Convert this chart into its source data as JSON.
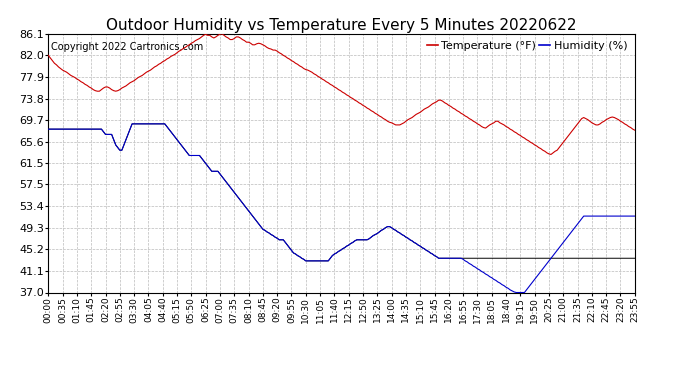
{
  "title": "Outdoor Humidity vs Temperature Every 5 Minutes 20220622",
  "copyright": "Copyright 2022 Cartronics.com",
  "legend_temp": "Temperature (°F)",
  "legend_hum": "Humidity (%)",
  "bg_color": "#ffffff",
  "grid_color": "#bbbbbb",
  "temp_color": "#cc0000",
  "hum_color": "#0000cc",
  "black_color": "#000000",
  "title_fontsize": 11,
  "copyright_fontsize": 7,
  "legend_fontsize": 8,
  "tick_fontsize": 6.5,
  "ytick_fontsize": 8,
  "ylabel_values": [
    37.0,
    41.1,
    45.2,
    49.3,
    53.4,
    57.5,
    61.5,
    65.6,
    69.7,
    73.8,
    77.9,
    82.0,
    86.1
  ],
  "temp_line": [
    82.0,
    81.5,
    81.0,
    80.5,
    80.2,
    79.8,
    79.5,
    79.2,
    79.0,
    78.8,
    78.5,
    78.2,
    78.0,
    77.8,
    77.5,
    77.3,
    77.0,
    76.8,
    76.5,
    76.3,
    76.0,
    75.8,
    75.5,
    75.3,
    75.2,
    75.2,
    75.5,
    75.8,
    76.0,
    76.0,
    75.8,
    75.5,
    75.3,
    75.2,
    75.3,
    75.5,
    75.8,
    76.0,
    76.2,
    76.5,
    76.8,
    77.0,
    77.2,
    77.5,
    77.8,
    78.0,
    78.2,
    78.5,
    78.8,
    79.0,
    79.2,
    79.5,
    79.8,
    80.0,
    80.3,
    80.5,
    80.8,
    81.0,
    81.3,
    81.5,
    81.8,
    82.0,
    82.2,
    82.5,
    82.8,
    83.0,
    83.3,
    83.5,
    83.8,
    84.0,
    84.3,
    84.5,
    84.8,
    85.0,
    85.2,
    85.5,
    85.8,
    86.0,
    85.8,
    85.8,
    85.5,
    85.3,
    85.5,
    85.8,
    86.0,
    86.1,
    85.8,
    85.5,
    85.3,
    85.0,
    85.0,
    85.2,
    85.5,
    85.5,
    85.3,
    85.0,
    84.8,
    84.5,
    84.5,
    84.3,
    84.0,
    84.0,
    84.2,
    84.3,
    84.2,
    84.0,
    83.8,
    83.5,
    83.3,
    83.2,
    83.0,
    83.0,
    82.8,
    82.5,
    82.3,
    82.0,
    81.8,
    81.5,
    81.3,
    81.0,
    80.8,
    80.5,
    80.3,
    80.0,
    79.8,
    79.5,
    79.3,
    79.2,
    79.0,
    78.8,
    78.5,
    78.3,
    78.0,
    77.8,
    77.5,
    77.3,
    77.0,
    76.8,
    76.5,
    76.3,
    76.0,
    75.8,
    75.5,
    75.3,
    75.0,
    74.8,
    74.5,
    74.3,
    74.0,
    73.8,
    73.5,
    73.3,
    73.0,
    72.8,
    72.5,
    72.3,
    72.0,
    71.8,
    71.5,
    71.3,
    71.0,
    70.8,
    70.5,
    70.3,
    70.0,
    69.8,
    69.5,
    69.3,
    69.2,
    69.0,
    68.8,
    68.8,
    68.8,
    69.0,
    69.2,
    69.5,
    69.8,
    70.0,
    70.2,
    70.5,
    70.8,
    71.0,
    71.2,
    71.5,
    71.8,
    72.0,
    72.2,
    72.5,
    72.8,
    73.0,
    73.2,
    73.5,
    73.5,
    73.3,
    73.0,
    72.8,
    72.5,
    72.3,
    72.0,
    71.8,
    71.5,
    71.3,
    71.0,
    70.8,
    70.5,
    70.3,
    70.0,
    69.8,
    69.5,
    69.3,
    69.0,
    68.8,
    68.5,
    68.3,
    68.2,
    68.5,
    68.8,
    69.0,
    69.2,
    69.5,
    69.5,
    69.2,
    69.0,
    68.8,
    68.5,
    68.3,
    68.0,
    67.8,
    67.5,
    67.3,
    67.0,
    66.8,
    66.5,
    66.3,
    66.0,
    65.8,
    65.5,
    65.3,
    65.0,
    64.8,
    64.5,
    64.3,
    64.0,
    63.8,
    63.5,
    63.3,
    63.2,
    63.5,
    63.8,
    64.0,
    64.5,
    65.0,
    65.5,
    66.0,
    66.5,
    67.0,
    67.5,
    68.0,
    68.5,
    69.0,
    69.5,
    70.0,
    70.2,
    70.0,
    69.8,
    69.5,
    69.2,
    69.0,
    68.8,
    68.8,
    69.0,
    69.3,
    69.5,
    69.8,
    70.0,
    70.2,
    70.3,
    70.2,
    70.0,
    69.8,
    69.5,
    69.3,
    69.0,
    68.8,
    68.5,
    68.3,
    68.0,
    67.8,
    67.5,
    67.3,
    67.0,
    66.8,
    66.5,
    66.3,
    66.0,
    65.8,
    65.5,
    65.2,
    65.0,
    64.8,
    65.0,
    65.5,
    66.0,
    66.5,
    67.0,
    67.5,
    68.0,
    68.5,
    69.0,
    69.5,
    70.0,
    70.2,
    70.0,
    69.8,
    69.5,
    69.3,
    69.2,
    69.0,
    68.5
  ],
  "hum_line": [
    68.0,
    68.0,
    68.0,
    68.0,
    68.0,
    68.0,
    68.0,
    68.0,
    68.0,
    68.0,
    68.0,
    68.0,
    68.0,
    68.0,
    68.0,
    68.0,
    68.0,
    68.0,
    68.0,
    68.0,
    68.0,
    68.0,
    68.0,
    68.0,
    68.0,
    68.0,
    68.0,
    67.5,
    67.0,
    67.0,
    67.0,
    67.0,
    66.0,
    65.0,
    64.5,
    64.0,
    64.0,
    65.0,
    66.0,
    67.0,
    68.0,
    69.0,
    69.0,
    69.0,
    69.0,
    69.0,
    69.0,
    69.0,
    69.0,
    69.0,
    69.0,
    69.0,
    69.0,
    69.0,
    69.0,
    69.0,
    69.0,
    69.0,
    68.5,
    68.0,
    67.5,
    67.0,
    66.5,
    66.0,
    65.5,
    65.0,
    64.5,
    64.0,
    63.5,
    63.0,
    63.0,
    63.0,
    63.0,
    63.0,
    63.0,
    62.5,
    62.0,
    61.5,
    61.0,
    60.5,
    60.0,
    60.0,
    60.0,
    60.0,
    59.5,
    59.0,
    58.5,
    58.0,
    57.5,
    57.0,
    56.5,
    56.0,
    55.5,
    55.0,
    54.5,
    54.0,
    53.5,
    53.0,
    52.5,
    52.0,
    51.5,
    51.0,
    50.5,
    50.0,
    49.5,
    49.0,
    48.8,
    48.5,
    48.3,
    48.0,
    47.8,
    47.5,
    47.3,
    47.0,
    47.0,
    47.0,
    46.5,
    46.0,
    45.5,
    45.0,
    44.5,
    44.3,
    44.0,
    43.8,
    43.5,
    43.3,
    43.0,
    43.0,
    43.0,
    43.0,
    43.0,
    43.0,
    43.0,
    43.0,
    43.0,
    43.0,
    43.0,
    43.0,
    43.5,
    44.0,
    44.3,
    44.5,
    44.8,
    45.0,
    45.3,
    45.5,
    45.8,
    46.0,
    46.3,
    46.5,
    46.8,
    47.0,
    47.0,
    47.0,
    47.0,
    47.0,
    47.0,
    47.2,
    47.5,
    47.8,
    48.0,
    48.2,
    48.5,
    48.8,
    49.0,
    49.3,
    49.5,
    49.5,
    49.3,
    49.0,
    48.8,
    48.5,
    48.3,
    48.0,
    47.8,
    47.5,
    47.3,
    47.0,
    46.8,
    46.5,
    46.3,
    46.0,
    45.8,
    45.5,
    45.3,
    45.0,
    44.8,
    44.5,
    44.3,
    44.0,
    43.8,
    43.5,
    43.5,
    43.5,
    43.5,
    43.5,
    43.5,
    43.5,
    43.5,
    43.5,
    43.5,
    43.5,
    43.5,
    43.3,
    43.0,
    42.8,
    42.5,
    42.3,
    42.0,
    41.8,
    41.5,
    41.3,
    41.0,
    40.8,
    40.5,
    40.3,
    40.0,
    39.8,
    39.5,
    39.3,
    39.0,
    38.8,
    38.5,
    38.3,
    38.0,
    37.8,
    37.5,
    37.3,
    37.1,
    37.0,
    37.0,
    37.0,
    37.0,
    37.0,
    37.5,
    38.0,
    38.5,
    39.0,
    39.5,
    40.0,
    40.5,
    41.0,
    41.5,
    42.0,
    42.5,
    43.0,
    43.5,
    44.0,
    44.5,
    45.0,
    45.5,
    46.0,
    46.5,
    47.0,
    47.5,
    48.0,
    48.5,
    49.0,
    49.5,
    50.0,
    50.5,
    51.0,
    51.5,
    51.5,
    51.5,
    51.5,
    51.5,
    51.5,
    51.5,
    51.5,
    51.5,
    51.5,
    51.5,
    51.5,
    51.5,
    51.5,
    51.5,
    51.5,
    51.5,
    51.5,
    51.5,
    51.5,
    51.5,
    51.5,
    51.5,
    51.5,
    51.5,
    51.5,
    51.5,
    51.5,
    51.5,
    51.5,
    51.5,
    51.5,
    51.5,
    51.5,
    51.5,
    51.5,
    52.0,
    52.5,
    53.0,
    53.5
  ],
  "black_line": [
    68.0,
    68.0,
    68.0,
    68.0,
    68.0,
    68.0,
    68.0,
    68.0,
    68.0,
    68.0,
    68.0,
    68.0,
    68.0,
    68.0,
    68.0,
    68.0,
    68.0,
    68.0,
    68.0,
    68.0,
    68.0,
    68.0,
    68.0,
    68.0,
    68.0,
    68.0,
    68.0,
    67.5,
    67.0,
    67.0,
    67.0,
    67.0,
    66.0,
    65.0,
    64.5,
    64.0,
    64.0,
    65.0,
    66.0,
    67.0,
    68.0,
    69.0,
    69.0,
    69.0,
    69.0,
    69.0,
    69.0,
    69.0,
    69.0,
    69.0,
    69.0,
    69.0,
    69.0,
    69.0,
    69.0,
    69.0,
    69.0,
    69.0,
    68.5,
    68.0,
    67.5,
    67.0,
    66.5,
    66.0,
    65.5,
    65.0,
    64.5,
    64.0,
    63.5,
    63.0,
    63.0,
    63.0,
    63.0,
    63.0,
    63.0,
    62.5,
    62.0,
    61.5,
    61.0,
    60.5,
    60.0,
    60.0,
    60.0,
    60.0,
    59.5,
    59.0,
    58.5,
    58.0,
    57.5,
    57.0,
    56.5,
    56.0,
    55.5,
    55.0,
    54.5,
    54.0,
    53.5,
    53.0,
    52.5,
    52.0,
    51.5,
    51.0,
    50.5,
    50.0,
    49.5,
    49.0,
    48.8,
    48.5,
    48.3,
    48.0,
    47.8,
    47.5,
    47.3,
    47.0,
    47.0,
    47.0,
    46.5,
    46.0,
    45.5,
    45.0,
    44.5,
    44.3,
    44.0,
    43.8,
    43.5,
    43.3,
    43.0,
    43.0,
    43.0,
    43.0,
    43.0,
    43.0,
    43.0,
    43.0,
    43.0,
    43.0,
    43.0,
    43.0,
    43.5,
    44.0,
    44.3,
    44.5,
    44.8,
    45.0,
    45.3,
    45.5,
    45.8,
    46.0,
    46.3,
    46.5,
    46.8,
    47.0,
    47.0,
    47.0,
    47.0,
    47.0,
    47.0,
    47.2,
    47.5,
    47.8,
    48.0,
    48.2,
    48.5,
    48.8,
    49.0,
    49.3,
    49.5,
    49.5,
    49.3,
    49.0,
    48.8,
    48.5,
    48.3,
    48.0,
    47.8,
    47.5,
    47.3,
    47.0,
    46.8,
    46.5,
    46.3,
    46.0,
    45.8,
    45.5,
    45.3,
    45.0,
    44.8,
    44.5,
    44.3,
    44.0,
    43.8,
    43.5,
    43.5,
    43.5,
    43.5,
    43.5,
    43.5,
    43.5,
    43.5,
    43.5,
    43.5,
    43.5,
    43.5,
    43.5,
    43.5,
    43.5,
    43.5,
    43.5,
    43.5,
    43.5,
    43.5,
    43.5,
    43.5,
    43.5,
    43.5,
    43.5,
    43.5,
    43.5,
    43.5,
    43.5,
    43.5,
    43.5,
    43.5,
    43.5,
    43.5,
    43.5,
    43.5,
    43.5,
    43.5,
    43.5,
    43.5,
    43.5,
    43.5,
    43.5,
    43.5,
    43.5,
    43.5,
    43.5,
    43.5,
    43.5,
    43.5,
    43.5,
    43.5,
    43.5,
    43.5,
    43.5,
    43.5,
    43.5,
    43.5,
    43.5,
    43.5,
    43.5,
    43.5,
    43.5,
    43.5,
    43.5,
    43.5,
    43.5,
    43.5,
    43.5,
    43.5,
    43.5,
    43.5,
    43.5,
    43.5,
    43.5,
    43.5,
    43.5,
    43.5,
    43.5,
    43.5,
    43.5,
    43.5,
    43.5,
    43.5,
    43.5,
    43.5,
    43.5,
    43.5,
    43.5,
    43.5,
    43.5,
    43.5,
    43.5,
    43.5,
    43.5,
    43.5,
    43.5,
    43.5,
    43.5,
    43.5,
    43.5,
    43.5,
    43.5,
    43.5,
    43.5,
    43.5,
    43.5,
    43.5,
    43.5,
    43.5,
    43.5
  ]
}
